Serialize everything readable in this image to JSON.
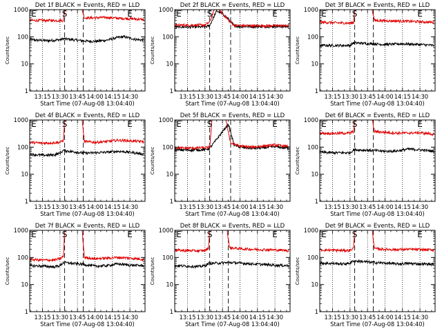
{
  "figure": {
    "xlabel": "Start Time (07-Aug-08 13:04:40)",
    "ylabel": "Counts/sec",
    "colors": {
      "events": "#000000",
      "lld": "#e00000",
      "axes": "#000000"
    }
  },
  "chart_data": [
    {
      "type": "line",
      "title": "Det 1f BLACK = Events, RED = LLD",
      "xlabel": "Start Time (07-Aug-08 13:04:40)",
      "ylabel": "Counts/sec",
      "xlim": [
        "13:04",
        "14:43"
      ],
      "ylim": [
        1,
        1000
      ],
      "yscale": "log",
      "xticks": [
        "13:15",
        "13:30",
        "13:45",
        "14:00",
        "14:15",
        "14:30"
      ],
      "yticks": [
        "1",
        "10",
        "100",
        "1000"
      ],
      "markers": [
        {
          "label": "E",
          "time": "13:04"
        },
        {
          "label": "S",
          "time": "13:34"
        },
        {
          "label": "E",
          "time": "14:30"
        }
      ],
      "vlines_dotted": [
        "13:15",
        "13:30",
        "13:45",
        "14:00",
        "14:15",
        "14:30"
      ],
      "vlines_dashed": [
        "13:34",
        "13:50"
      ],
      "series": [
        {
          "name": "Events",
          "color": "#000000",
          "x": [
            "13:04",
            "13:10",
            "13:20",
            "13:30",
            "13:33",
            "13:51",
            "14:00",
            "14:10",
            "14:20",
            "14:25",
            "14:35",
            "14:42"
          ],
          "y": [
            80,
            75,
            72,
            78,
            85,
            70,
            68,
            75,
            95,
            100,
            80,
            75
          ]
        },
        {
          "name": "LLD",
          "color": "#e00000",
          "x": [
            "13:04",
            "13:10",
            "13:20",
            "13:30",
            "13:33",
            "13:34",
            "13:49",
            "13:51",
            "14:00",
            "14:10",
            "14:20",
            "14:30",
            "14:42"
          ],
          "y": [
            400,
            400,
            400,
            400,
            400,
            1000,
            1000,
            500,
            500,
            520,
            480,
            470,
            430
          ]
        }
      ]
    },
    {
      "type": "line",
      "title": "Det 2f BLACK = Events, RED = LLD",
      "xlabel": "Start Time (07-Aug-08 13:04:40)",
      "ylabel": "Counts/sec",
      "xlim": [
        "13:04",
        "14:43"
      ],
      "ylim": [
        1,
        1000
      ],
      "yscale": "log",
      "xticks": [
        "13:15",
        "13:30",
        "13:45",
        "14:00",
        "14:15",
        "14:30"
      ],
      "yticks": [
        "1",
        "10",
        "100",
        "1000"
      ],
      "markers": [
        {
          "label": "E",
          "time": "13:04"
        },
        {
          "label": "S",
          "time": "13:34"
        },
        {
          "label": "E",
          "time": "14:30"
        }
      ],
      "vlines_dotted": [
        "13:15",
        "13:30",
        "13:45",
        "14:00",
        "14:15",
        "14:30"
      ],
      "vlines_dashed": [
        "13:34",
        "13:52"
      ],
      "series": [
        {
          "name": "Events",
          "color": "#000000",
          "x": [
            "13:04",
            "13:15",
            "13:30",
            "13:34",
            "13:40",
            "13:45",
            "13:50",
            "13:55",
            "14:00",
            "14:15",
            "14:30",
            "14:42"
          ],
          "y": [
            230,
            230,
            230,
            260,
            900,
            700,
            450,
            260,
            240,
            240,
            240,
            240
          ]
        },
        {
          "name": "LLD",
          "color": "#e00000",
          "x": [
            "13:04",
            "13:15",
            "13:30",
            "13:34",
            "13:38",
            "13:42",
            "13:46",
            "13:50",
            "13:55",
            "14:00",
            "14:15",
            "14:30",
            "14:42"
          ],
          "y": [
            270,
            270,
            270,
            350,
            1000,
            1000,
            650,
            420,
            260,
            260,
            255,
            255,
            255
          ]
        }
      ]
    },
    {
      "type": "line",
      "title": "Det 3f BLACK = Events, RED = LLD",
      "xlabel": "Start Time (07-Aug-08 13:04:40)",
      "ylabel": "Counts/sec",
      "xlim": [
        "13:04",
        "14:43"
      ],
      "ylim": [
        1,
        1000
      ],
      "yscale": "log",
      "xticks": [
        "13:15",
        "13:30",
        "13:45",
        "14:00",
        "14:15",
        "14:30"
      ],
      "yticks": [
        "1",
        "10",
        "100",
        "1000"
      ],
      "markers": [
        {
          "label": "E",
          "time": "13:04"
        },
        {
          "label": "S",
          "time": "13:34"
        },
        {
          "label": "E",
          "time": "14:30"
        }
      ],
      "vlines_dotted": [
        "13:15",
        "13:30",
        "13:45",
        "14:00",
        "14:15",
        "14:30"
      ],
      "vlines_dashed": [
        "13:34",
        "13:50"
      ],
      "series": [
        {
          "name": "Events",
          "color": "#000000",
          "x": [
            "13:04",
            "13:15",
            "13:30",
            "13:33",
            "13:51",
            "14:00",
            "14:15",
            "14:30",
            "14:42"
          ],
          "y": [
            48,
            48,
            48,
            60,
            55,
            52,
            55,
            52,
            48
          ]
        },
        {
          "name": "LLD",
          "color": "#e00000",
          "x": [
            "13:04",
            "13:15",
            "13:30",
            "13:33",
            "13:34",
            "13:49",
            "13:51",
            "14:00",
            "14:15",
            "14:30",
            "14:42"
          ],
          "y": [
            350,
            330,
            320,
            330,
            1000,
            1000,
            400,
            390,
            380,
            360,
            340
          ]
        }
      ]
    },
    {
      "type": "line",
      "title": "Det 4f BLACK = Events, RED = LLD",
      "xlabel": "Start Time (07-Aug-08 13:04:40)",
      "ylabel": "Counts/sec",
      "xlim": [
        "13:04",
        "14:43"
      ],
      "ylim": [
        1,
        1000
      ],
      "yscale": "log",
      "xticks": [
        "13:15",
        "13:30",
        "13:45",
        "14:00",
        "14:15",
        "14:30"
      ],
      "yticks": [
        "1",
        "10",
        "100",
        "1000"
      ],
      "markers": [
        {
          "label": "E",
          "time": "13:04"
        },
        {
          "label": "S",
          "time": "13:34"
        },
        {
          "label": "E",
          "time": "14:30"
        }
      ],
      "vlines_dotted": [
        "13:15",
        "13:30",
        "13:45",
        "14:00",
        "14:15",
        "14:30"
      ],
      "vlines_dashed": [
        "13:34",
        "13:50"
      ],
      "series": [
        {
          "name": "Events",
          "color": "#000000",
          "x": [
            "13:04",
            "13:15",
            "13:25",
            "13:30",
            "13:33",
            "13:51",
            "14:00",
            "14:10",
            "14:20",
            "14:30",
            "14:42"
          ],
          "y": [
            55,
            50,
            52,
            60,
            75,
            60,
            62,
            65,
            70,
            65,
            55
          ]
        },
        {
          "name": "LLD",
          "color": "#e00000",
          "x": [
            "13:04",
            "13:15",
            "13:25",
            "13:30",
            "13:33",
            "13:34",
            "13:49",
            "13:51",
            "14:00",
            "14:10",
            "14:20",
            "14:30",
            "14:42"
          ],
          "y": [
            150,
            140,
            145,
            150,
            180,
            1000,
            1000,
            160,
            150,
            160,
            180,
            170,
            160
          ]
        }
      ]
    },
    {
      "type": "line",
      "title": "Det 5f BLACK = Events, RED = LLD",
      "xlabel": "Start Time (07-Aug-08 13:04:40)",
      "ylabel": "Counts/sec",
      "xlim": [
        "13:04",
        "14:43"
      ],
      "ylim": [
        1,
        1000
      ],
      "yscale": "log",
      "xticks": [
        "13:15",
        "13:30",
        "13:45",
        "14:00",
        "14:15",
        "14:30"
      ],
      "yticks": [
        "1",
        "10",
        "100",
        "1000"
      ],
      "markers": [
        {
          "label": "E",
          "time": "13:04"
        },
        {
          "label": "S",
          "time": "13:34"
        },
        {
          "label": "E",
          "time": "14:30"
        }
      ],
      "vlines_dotted": [
        "13:15",
        "13:30",
        "13:45",
        "14:00",
        "14:15",
        "14:30"
      ],
      "vlines_dashed": [
        "13:34",
        "13:52"
      ],
      "series": [
        {
          "name": "Events",
          "color": "#000000",
          "x": [
            "13:04",
            "13:15",
            "13:30",
            "13:34",
            "13:50",
            "13:55",
            "14:00",
            "14:10",
            "14:20",
            "14:30",
            "14:42"
          ],
          "y": [
            80,
            78,
            80,
            90,
            700,
            120,
            100,
            90,
            95,
            105,
            90
          ]
        },
        {
          "name": "LLD",
          "color": "#e00000",
          "x": [
            "13:04",
            "13:15",
            "13:30",
            "13:34",
            "13:36",
            "13:48",
            "13:52",
            "14:00",
            "14:10",
            "14:20",
            "14:30",
            "14:42"
          ],
          "y": [
            95,
            92,
            95,
            100,
            1000,
            1000,
            140,
            110,
            100,
            110,
            120,
            105
          ]
        }
      ]
    },
    {
      "type": "line",
      "title": "Det 6f BLACK = Events, RED = LLD",
      "xlabel": "Start Time (07-Aug-08 13:04:40)",
      "ylabel": "Counts/sec",
      "xlim": [
        "13:04",
        "14:43"
      ],
      "ylim": [
        1,
        1000
      ],
      "yscale": "log",
      "xticks": [
        "13:15",
        "13:30",
        "13:45",
        "14:00",
        "14:15",
        "14:30"
      ],
      "yticks": [
        "1",
        "10",
        "100",
        "1000"
      ],
      "markers": [
        {
          "label": "E",
          "time": "13:04"
        },
        {
          "label": "S",
          "time": "13:34"
        },
        {
          "label": "E",
          "time": "14:30"
        }
      ],
      "vlines_dotted": [
        "13:15",
        "13:30",
        "13:45",
        "14:00",
        "14:15",
        "14:30"
      ],
      "vlines_dashed": [
        "13:34",
        "13:50"
      ],
      "series": [
        {
          "name": "Events",
          "color": "#000000",
          "x": [
            "13:04",
            "13:15",
            "13:30",
            "13:33",
            "13:51",
            "14:00",
            "14:10",
            "14:20",
            "14:30",
            "14:42"
          ],
          "y": [
            65,
            62,
            62,
            80,
            75,
            70,
            72,
            85,
            80,
            70
          ]
        },
        {
          "name": "LLD",
          "color": "#e00000",
          "x": [
            "13:04",
            "13:15",
            "13:30",
            "13:33",
            "13:34",
            "13:49",
            "13:51",
            "14:00",
            "14:10",
            "14:20",
            "14:30",
            "14:42"
          ],
          "y": [
            330,
            320,
            330,
            380,
            1000,
            1000,
            380,
            350,
            330,
            330,
            340,
            300
          ]
        }
      ]
    },
    {
      "type": "line",
      "title": "Det 7f BLACK = Events, RED = LLD",
      "xlabel": "Start Time (07-Aug-08 13:04:40)",
      "ylabel": "Counts/sec",
      "xlim": [
        "13:04",
        "14:43"
      ],
      "ylim": [
        1,
        1000
      ],
      "yscale": "log",
      "xticks": [
        "13:15",
        "13:30",
        "13:45",
        "14:00",
        "14:15",
        "14:30"
      ],
      "yticks": [
        "1",
        "10",
        "100",
        "1000"
      ],
      "markers": [
        {
          "label": "E",
          "time": "13:04"
        },
        {
          "label": "S",
          "time": "13:34"
        },
        {
          "label": "E",
          "time": "14:30"
        }
      ],
      "vlines_dotted": [
        "13:15",
        "13:30",
        "13:45",
        "14:00",
        "14:15",
        "14:30"
      ],
      "vlines_dashed": [
        "13:34",
        "13:50"
      ],
      "series": [
        {
          "name": "Events",
          "color": "#000000",
          "x": [
            "13:04",
            "13:15",
            "13:25",
            "13:30",
            "13:33",
            "13:51",
            "14:00",
            "14:10",
            "14:20",
            "14:30",
            "14:42"
          ],
          "y": [
            50,
            48,
            45,
            50,
            65,
            55,
            48,
            50,
            58,
            52,
            50
          ]
        },
        {
          "name": "LLD",
          "color": "#e00000",
          "x": [
            "13:04",
            "13:15",
            "13:25",
            "13:30",
            "13:33",
            "13:34",
            "13:49",
            "13:51",
            "14:00",
            "14:10",
            "14:20",
            "14:30",
            "14:42"
          ],
          "y": [
            85,
            80,
            80,
            90,
            110,
            1000,
            1000,
            100,
            90,
            95,
            100,
            95,
            85
          ]
        }
      ]
    },
    {
      "type": "line",
      "title": "Det 8f BLACK = Events, RED = LLD",
      "xlabel": "Start Time (07-Aug-08 13:04:40)",
      "ylabel": "Counts/sec",
      "xlim": [
        "13:04",
        "14:43"
      ],
      "ylim": [
        1,
        1000
      ],
      "yscale": "log",
      "xticks": [
        "13:15",
        "13:30",
        "13:45",
        "14:00",
        "14:15",
        "14:30"
      ],
      "yticks": [
        "1",
        "10",
        "100",
        "1000"
      ],
      "markers": [
        {
          "label": "E",
          "time": "13:04"
        },
        {
          "label": "S",
          "time": "13:34"
        },
        {
          "label": "E",
          "time": "14:30"
        }
      ],
      "vlines_dotted": [
        "13:15",
        "13:30",
        "13:45",
        "14:00",
        "14:15",
        "14:30"
      ],
      "vlines_dashed": [
        "13:34",
        "13:50"
      ],
      "series": [
        {
          "name": "Events",
          "color": "#000000",
          "x": [
            "13:04",
            "13:15",
            "13:25",
            "13:30",
            "13:33",
            "13:51",
            "14:00",
            "14:10",
            "14:20",
            "14:30",
            "14:42"
          ],
          "y": [
            50,
            48,
            46,
            50,
            60,
            65,
            62,
            58,
            55,
            52,
            50
          ]
        },
        {
          "name": "LLD",
          "color": "#e00000",
          "x": [
            "13:04",
            "13:15",
            "13:25",
            "13:30",
            "13:33",
            "13:34",
            "13:49",
            "13:51",
            "14:00",
            "14:10",
            "14:20",
            "14:30",
            "14:42"
          ],
          "y": [
            185,
            180,
            175,
            180,
            220,
            1000,
            1000,
            230,
            210,
            200,
            195,
            190,
            180
          ]
        }
      ]
    },
    {
      "type": "line",
      "title": "Det 9f BLACK = Events, RED = LLD",
      "xlabel": "Start Time (07-Aug-08 13:04:40)",
      "ylabel": "Counts/sec",
      "xlim": [
        "13:04",
        "14:43"
      ],
      "ylim": [
        1,
        1000
      ],
      "yscale": "log",
      "xticks": [
        "13:15",
        "13:30",
        "13:45",
        "14:00",
        "14:15",
        "14:30"
      ],
      "yticks": [
        "1",
        "10",
        "100",
        "1000"
      ],
      "markers": [
        {
          "label": "E",
          "time": "13:04"
        },
        {
          "label": "S",
          "time": "13:34"
        },
        {
          "label": "E",
          "time": "14:30"
        }
      ],
      "vlines_dotted": [
        "13:15",
        "13:30",
        "13:45",
        "14:00",
        "14:15",
        "14:30"
      ],
      "vlines_dashed": [
        "13:34",
        "13:50"
      ],
      "series": [
        {
          "name": "Events",
          "color": "#000000",
          "x": [
            "13:04",
            "13:15",
            "13:25",
            "13:30",
            "13:33",
            "13:51",
            "14:00",
            "14:10",
            "14:20",
            "14:30",
            "14:42"
          ],
          "y": [
            62,
            60,
            58,
            62,
            75,
            65,
            62,
            58,
            60,
            58,
            56
          ]
        },
        {
          "name": "LLD",
          "color": "#e00000",
          "x": [
            "13:04",
            "13:15",
            "13:25",
            "13:30",
            "13:33",
            "13:34",
            "13:49",
            "13:51",
            "14:00",
            "14:10",
            "14:20",
            "14:30",
            "14:42"
          ],
          "y": [
            190,
            185,
            180,
            185,
            220,
            1000,
            1000,
            210,
            200,
            195,
            200,
            195,
            190
          ]
        }
      ]
    }
  ]
}
